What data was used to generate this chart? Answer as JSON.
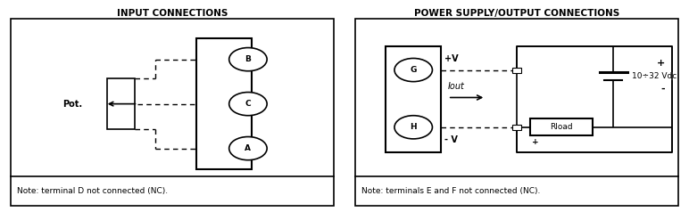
{
  "title_left": "INPUT CONNECTIONS",
  "title_right": "POWER SUPPLY/OUTPUT CONNECTIONS",
  "note_left": "Note: terminal D not connected (NC).",
  "note_right": "Note: terminals E and F not connected (NC).",
  "pot_label": "Pot.",
  "vplus_label": "+V",
  "vminus_label": "- V",
  "iout_label": "Iout",
  "vdc_label": "10÷32 Vdc",
  "rload_label": "Rload",
  "plus_top": "+",
  "minus_batt": "-",
  "plus_rload": "+",
  "bg_color": "#ffffff",
  "lc": "#000000",
  "title_fontsize": 7.5,
  "label_fontsize": 7.0,
  "note_fontsize": 6.5,
  "small_fontsize": 6.5
}
